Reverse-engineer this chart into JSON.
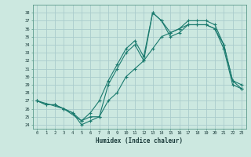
{
  "title": "",
  "xlabel": "Humidex (Indice chaleur)",
  "ylabel": "",
  "bg_color": "#cce8e0",
  "grid_color": "#aacccc",
  "line_color": "#1a7a6e",
  "xlim": [
    -0.5,
    23.5
  ],
  "ylim": [
    23.5,
    39.0
  ],
  "yticks": [
    24,
    25,
    26,
    27,
    28,
    29,
    30,
    31,
    32,
    33,
    34,
    35,
    36,
    37,
    38
  ],
  "xticks": [
    0,
    1,
    2,
    3,
    4,
    5,
    6,
    7,
    8,
    9,
    10,
    11,
    12,
    13,
    14,
    15,
    16,
    17,
    18,
    19,
    20,
    21,
    22,
    23
  ],
  "series1_x": [
    0,
    1,
    2,
    3,
    4,
    5,
    6,
    7,
    8,
    9,
    10,
    11,
    12,
    13,
    14,
    15,
    16,
    17,
    18,
    19,
    20,
    21,
    22,
    23
  ],
  "series1_y": [
    27,
    26.5,
    26.5,
    26,
    25.5,
    24,
    24.5,
    25,
    29,
    31,
    33,
    34,
    32,
    38,
    37,
    35,
    35.5,
    36.5,
    36.5,
    36.5,
    36,
    33.5,
    29,
    28.5
  ],
  "series2_x": [
    0,
    1,
    2,
    3,
    4,
    5,
    6,
    7,
    8,
    9,
    10,
    11,
    12,
    13,
    14,
    15,
    16,
    17,
    18,
    19,
    20,
    21,
    22,
    23
  ],
  "series2_y": [
    27,
    26.5,
    26.5,
    26,
    25.5,
    24.5,
    25.5,
    27,
    29.5,
    31.5,
    33.5,
    34.5,
    32.5,
    38,
    37,
    35.5,
    36,
    37,
    37,
    37,
    36.5,
    34,
    29.5,
    29
  ],
  "series3_x": [
    0,
    3,
    5,
    6,
    7,
    8,
    9,
    10,
    11,
    12,
    13,
    14,
    15,
    16,
    17,
    18,
    19,
    20,
    21,
    22,
    23
  ],
  "series3_y": [
    27,
    26,
    24.5,
    25,
    25,
    27,
    28,
    30,
    31,
    32,
    33.5,
    35,
    35.5,
    36,
    36.5,
    36.5,
    36.5,
    36,
    34,
    29.5,
    28.5
  ]
}
